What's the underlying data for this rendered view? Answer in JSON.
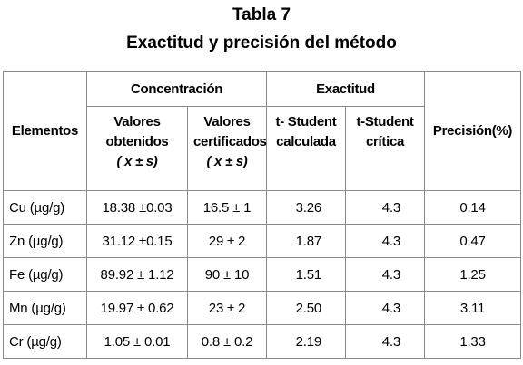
{
  "title": "Tabla 7",
  "subtitle": "Exactitud y precisión del método",
  "table": {
    "header": {
      "group": [
        "Elementos",
        "Concentración",
        "Exactitud",
        "Precisión(%)"
      ],
      "sub": [
        [
          "Valores",
          "obtenidos",
          "( x ± s)"
        ],
        [
          "Valores",
          "certificados",
          "( x ± s)"
        ],
        [
          "t- Student",
          "calculada"
        ],
        [
          "t-Student",
          "crítica"
        ]
      ]
    },
    "rows": [
      [
        "Cu (µg/g)",
        "18.38 ±0.03",
        "16.5 ± 1",
        "3.26",
        "4.3",
        "0.14"
      ],
      [
        "Zn (µg/g)",
        "31.12 ±0.15",
        "29 ± 2",
        "1.87",
        "4.3",
        "0.47"
      ],
      [
        "Fe (µg/g)",
        "89.92 ± 1.12",
        "90 ± 10",
        "1.51",
        "4.3",
        "1.25"
      ],
      [
        "Mn (µg/g)",
        "19.97 ± 0.62",
        "23 ± 2",
        "2.50",
        "4.3",
        "3.11"
      ],
      [
        "Cr (µg/g)",
        "1.05 ± 0.01",
        "0.8 ± 0.2",
        "2.19",
        "4.3",
        "1.33"
      ]
    ]
  }
}
